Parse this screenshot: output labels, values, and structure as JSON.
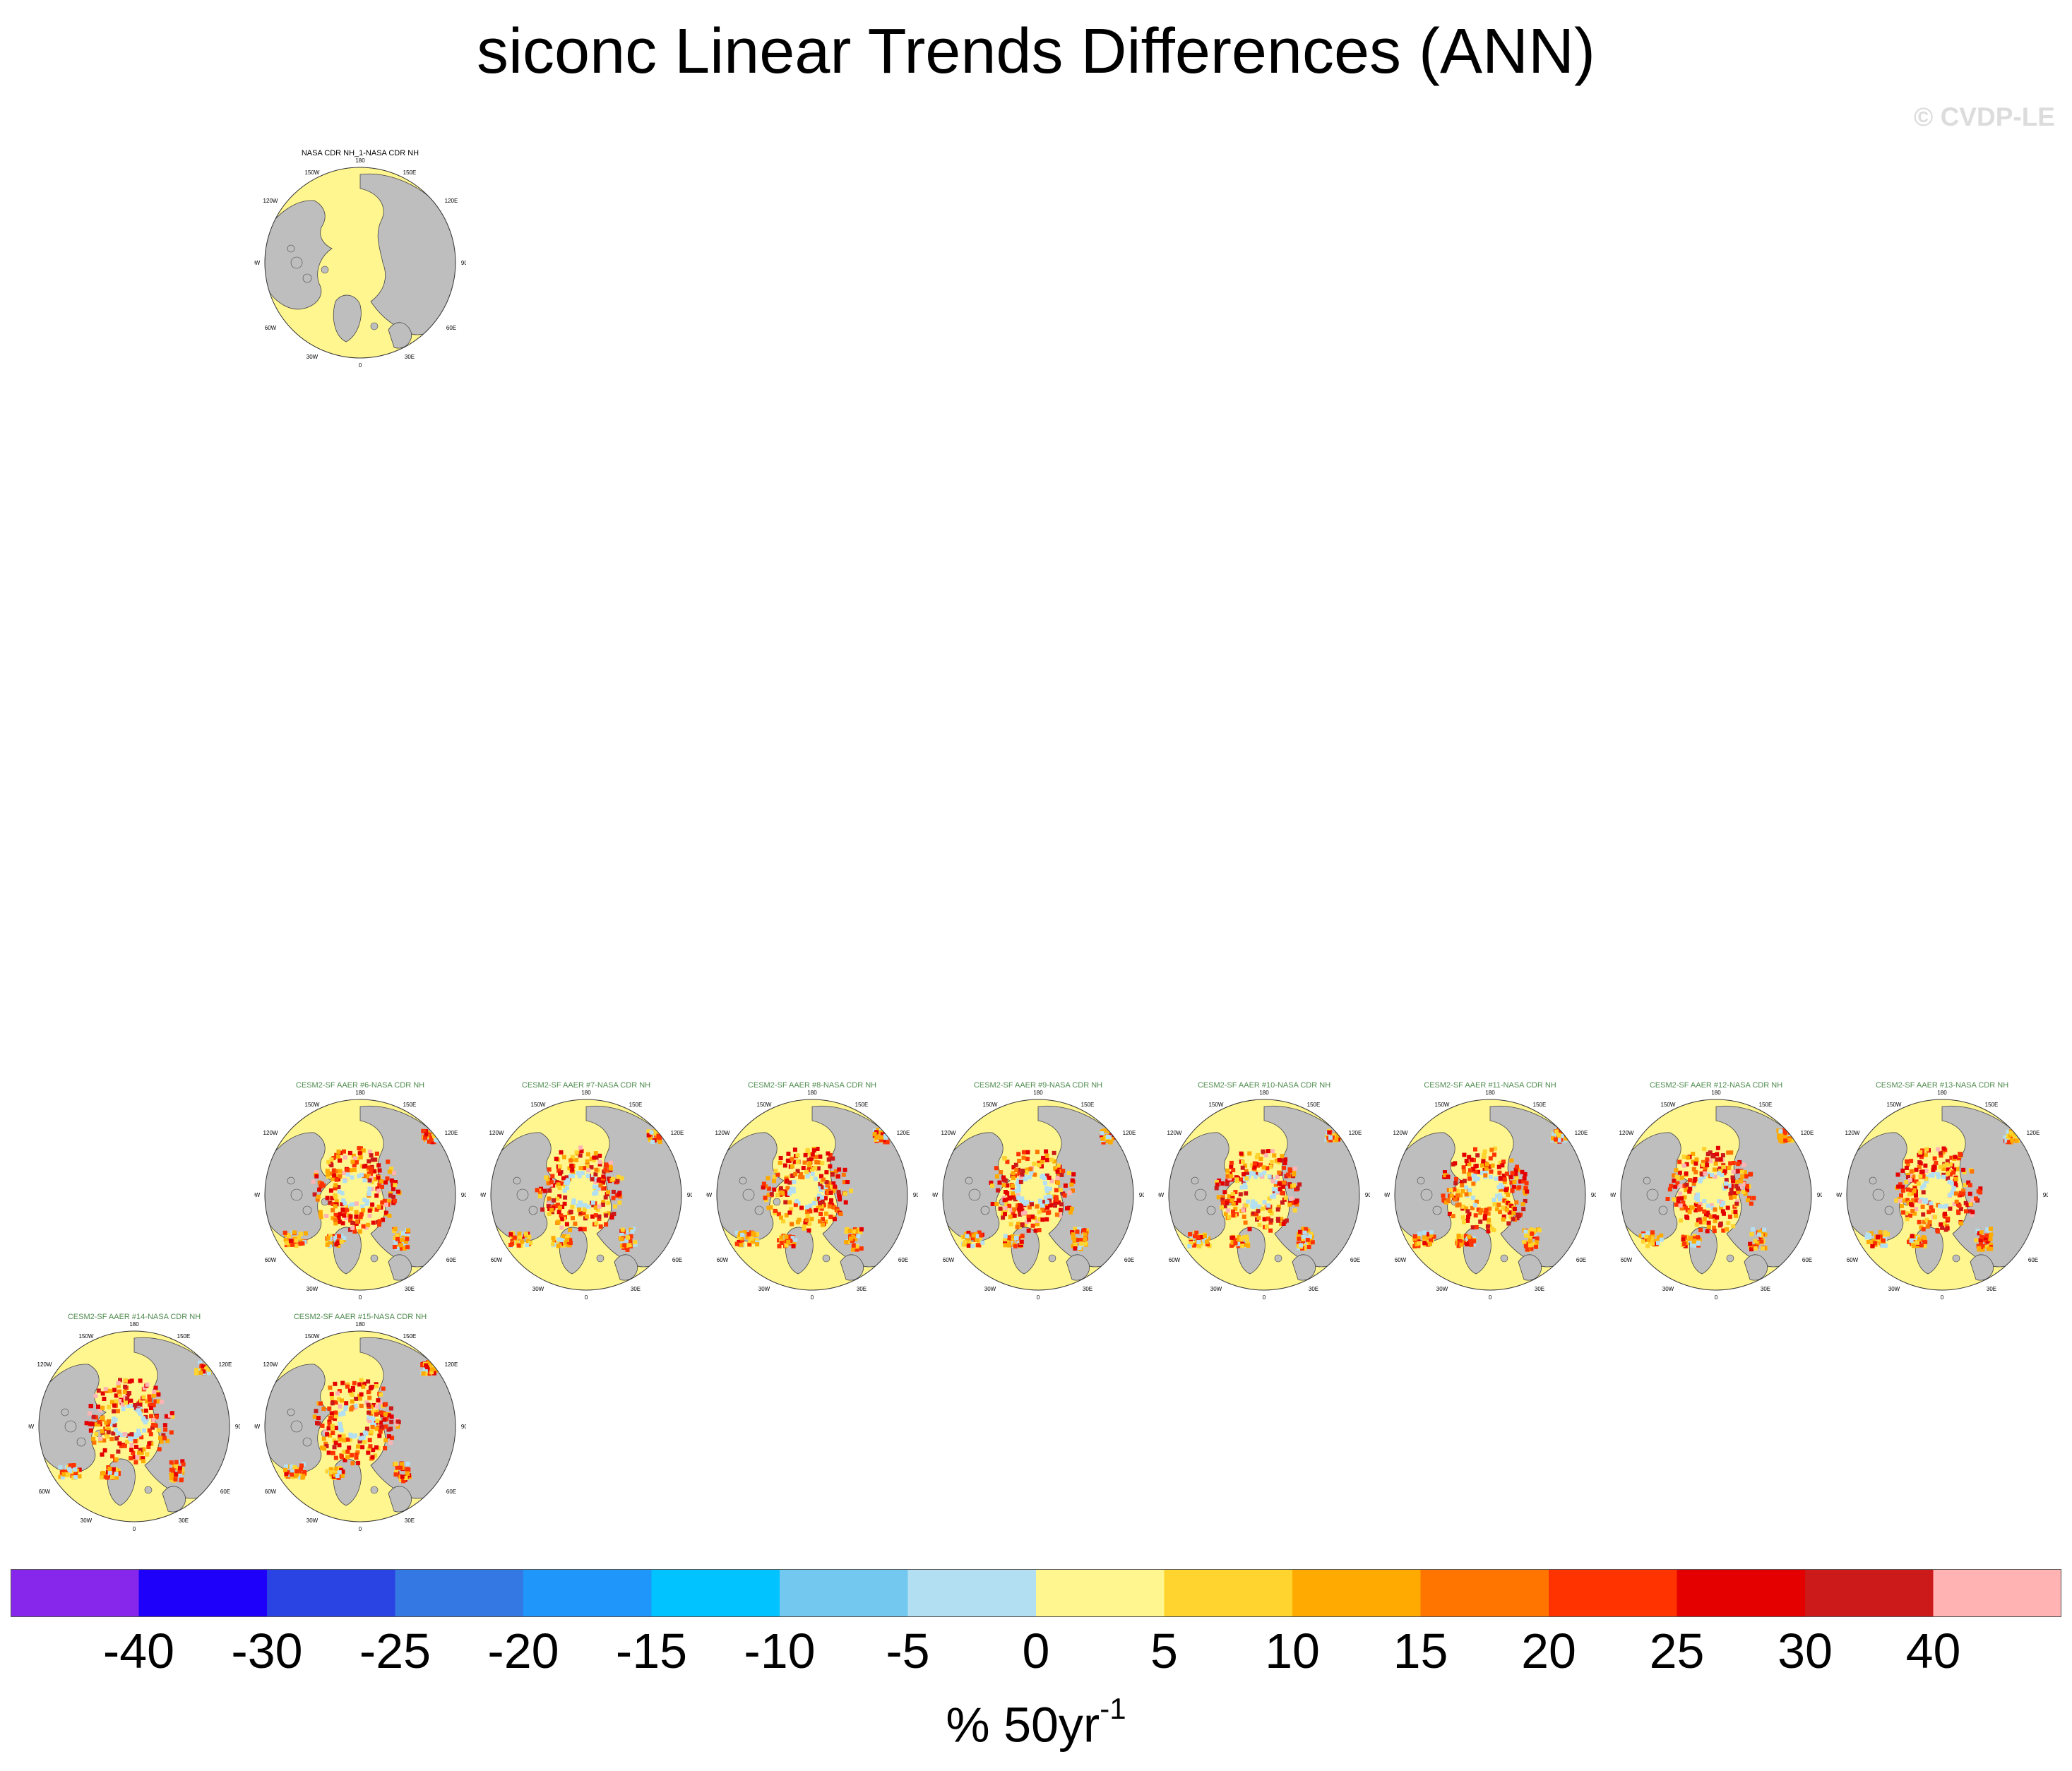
{
  "title": "siconc Linear Trends Differences (ANN)",
  "watermark": "© CVDP-LE",
  "units": {
    "prefix": "% 50yr",
    "superscript": "-1"
  },
  "colors": {
    "land": "#bebebe",
    "positive_small": "#fff68f",
    "negative_small": "#b3dff2",
    "warm": [
      "#ffd42e",
      "#ffaa00",
      "#ff7500",
      "#ff3300",
      "#e50000",
      "#cc1a1a",
      "#ffb3b3"
    ],
    "title_obs": "#000000",
    "title_model": "#4e8a4e"
  },
  "colorbar": {
    "colors": [
      "#8727ec",
      "#1e00fa",
      "#2a44e4",
      "#3378e3",
      "#1e96fa",
      "#00c3ff",
      "#73c8f0",
      "#b3dff2",
      "#fff68f",
      "#ffd42e",
      "#ffaa00",
      "#ff7500",
      "#ff3300",
      "#e50000",
      "#cc1a1a",
      "#ffb3b3"
    ],
    "labels": [
      "-40",
      "-30",
      "-25",
      "-20",
      "-15",
      "-10",
      "-5",
      "0",
      "5",
      "10",
      "15",
      "20",
      "25",
      "30",
      "40"
    ]
  },
  "map_labels": {
    "top": "180",
    "bottom": "0",
    "left": "90W",
    "right": "90E",
    "upper_left_outer": "150W",
    "upper_left_inner": "120W",
    "upper_right_outer": "150E",
    "upper_right_inner": "120E",
    "lower_left_outer": "60W",
    "lower_left_inner": "30W",
    "lower_right_outer": "60E",
    "lower_right_inner": "30E"
  },
  "panels": [
    {
      "title": "NASA CDR NH_1-NASA CDR NH",
      "kind": "obs",
      "intensity": 0
    },
    {
      "title": "CESM2-SF AAER #6-NASA CDR NH",
      "kind": "model",
      "intensity": 2
    },
    {
      "title": "CESM2-SF AAER #7-NASA CDR NH",
      "kind": "model",
      "intensity": 2
    },
    {
      "title": "CESM2-SF AAER #8-NASA CDR NH",
      "kind": "model",
      "intensity": 1
    },
    {
      "title": "CESM2-SF AAER #9-NASA CDR NH",
      "kind": "model",
      "intensity": 2
    },
    {
      "title": "CESM2-SF AAER #10-NASA CDR NH",
      "kind": "model",
      "intensity": 2
    },
    {
      "title": "CESM2-SF AAER #11-NASA CDR NH",
      "kind": "model",
      "intensity": 1
    },
    {
      "title": "CESM2-SF AAER #12-NASA CDR NH",
      "kind": "model",
      "intensity": 2
    },
    {
      "title": "CESM2-SF AAER #13-NASA CDR NH",
      "kind": "model",
      "intensity": 2
    },
    {
      "title": "CESM2-SF AAER #14-NASA CDR NH",
      "kind": "model",
      "intensity": 2
    },
    {
      "title": "CESM2-SF AAER #15-NASA CDR NH",
      "kind": "model",
      "intensity": 2
    }
  ]
}
